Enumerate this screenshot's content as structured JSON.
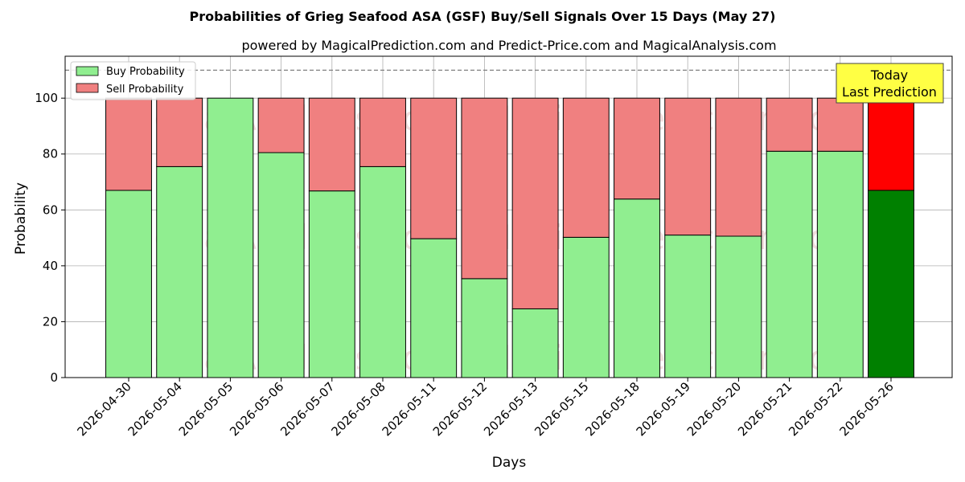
{
  "chart_data": {
    "type": "bar",
    "stacked": true,
    "title": "Probabilities of Grieg Seafood ASA (GSF) Buy/Sell Signals Over 15 Days (May 27)",
    "subtitle": "powered by MagicalPrediction.com and Predict-Price.com and MagicalAnalysis.com",
    "xlabel": "Days",
    "ylabel": "Probability",
    "ylim": [
      0,
      115
    ],
    "yticks": [
      0,
      20,
      40,
      60,
      80,
      100
    ],
    "grid": true,
    "legend_position": "top-left",
    "reference_line": 110,
    "categories": [
      "2026-04-30",
      "2026-05-04",
      "2026-05-05",
      "2026-05-06",
      "2026-05-07",
      "2026-05-08",
      "2026-05-11",
      "2026-05-12",
      "2026-05-13",
      "2026-05-15",
      "2026-05-18",
      "2026-05-19",
      "2026-05-20",
      "2026-05-21",
      "2026-05-22",
      "2026-05-26"
    ],
    "series": [
      {
        "name": "Buy Probability",
        "color": "#90ee90",
        "highlight_color": "#008000",
        "values": [
          67,
          75.5,
          100,
          80.5,
          66.8,
          75.5,
          49.7,
          35.4,
          24.6,
          50.2,
          63.9,
          51,
          50.6,
          81,
          81,
          67
        ]
      },
      {
        "name": "Sell Probability",
        "color": "#f08080",
        "highlight_color": "#ff0000",
        "values": [
          33,
          24.5,
          0,
          19.5,
          33.2,
          24.5,
          50.3,
          64.6,
          75.4,
          49.8,
          36.1,
          49,
          49.4,
          19,
          19,
          33
        ]
      }
    ],
    "annotation": {
      "line1": "Today",
      "line2": "Last Prediction",
      "background": "#ffff44"
    },
    "watermarks": [
      "MagicalAnalysis.com",
      "MagicalPrediction.com"
    ]
  }
}
